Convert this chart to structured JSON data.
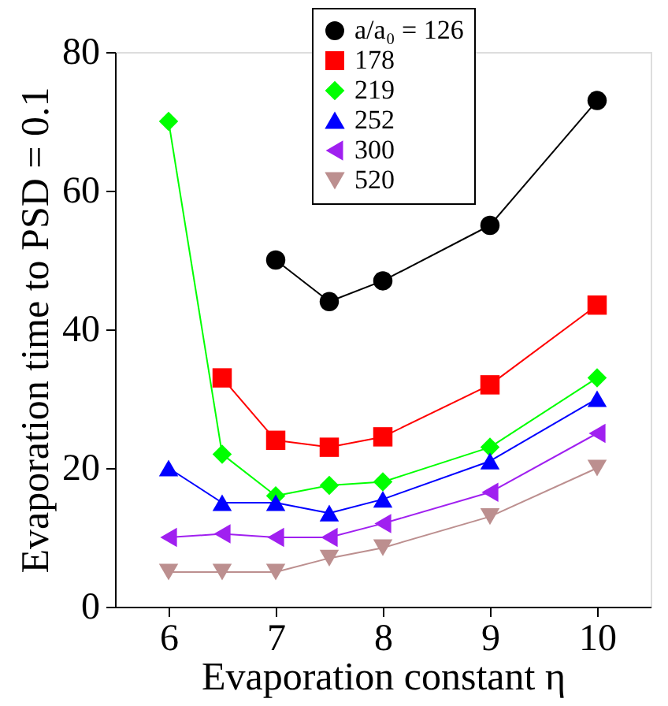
{
  "chart_data": {
    "type": "line",
    "xlabel": "Evaporation constant η",
    "ylabel": "Evaporation time to PSD = 0.1",
    "x": [
      6,
      6.5,
      7,
      7.5,
      8,
      9,
      10
    ],
    "xlim": [
      5.5,
      10.5
    ],
    "xticks": [
      6,
      7,
      8,
      9,
      10
    ],
    "ylim": [
      0,
      80
    ],
    "yticks": [
      0,
      20,
      40,
      60,
      80
    ],
    "grid": false,
    "legend": "top",
    "series": [
      {
        "name": "a/a₀ = 126",
        "color": "#000000",
        "marker": "circle",
        "values": [
          null,
          null,
          50,
          44,
          47,
          55,
          73
        ]
      },
      {
        "name": "178",
        "color": "#ff0000",
        "marker": "square",
        "values": [
          null,
          33,
          24,
          23,
          24.5,
          32,
          43.5
        ]
      },
      {
        "name": "219",
        "color": "#00ff00",
        "marker": "diamond",
        "values": [
          70,
          22,
          16,
          17.5,
          18,
          23,
          33
        ]
      },
      {
        "name": "252",
        "color": "#0000ff",
        "marker": "triangle",
        "values": [
          20,
          15,
          15,
          13.5,
          15.5,
          21,
          30
        ]
      },
      {
        "name": "300",
        "color": "#a020f0",
        "marker": "triangle-left",
        "values": [
          10,
          10.5,
          10,
          10,
          12,
          16.5,
          25
        ]
      },
      {
        "name": "520",
        "color": "#bc8f8f",
        "marker": "triangle-down",
        "values": [
          5,
          5,
          5,
          7,
          8.5,
          13,
          20
        ]
      }
    ]
  }
}
